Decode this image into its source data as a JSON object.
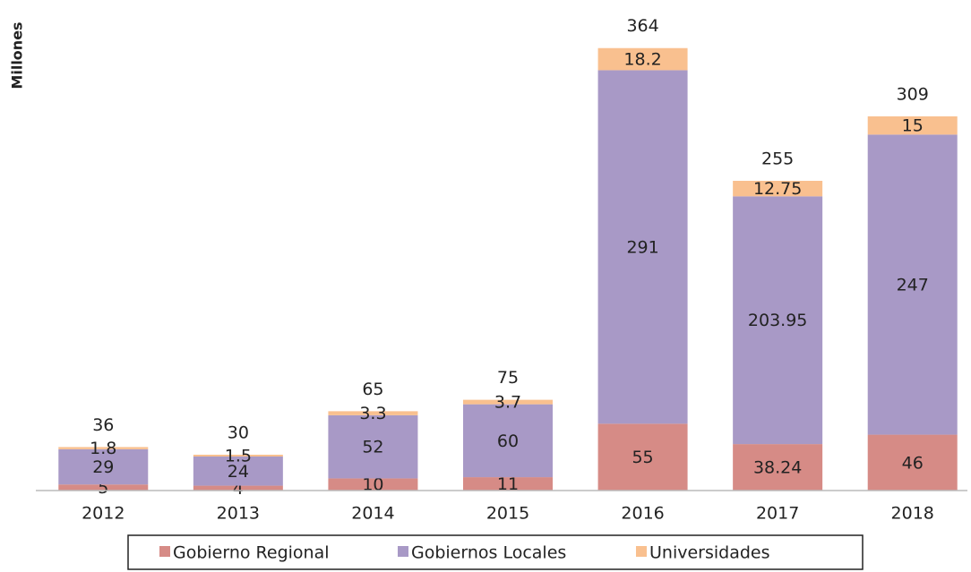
{
  "chart_data": {
    "type": "stacked_bar",
    "y_label": "Millones",
    "categories": [
      "2012",
      "2013",
      "2014",
      "2015",
      "2016",
      "2017",
      "2018"
    ],
    "series": [
      {
        "name": "Gobierno Regional",
        "color": "#d68b86",
        "values": [
          5,
          4,
          10,
          11,
          55,
          38.24,
          46
        ]
      },
      {
        "name": "Gobiernos Locales",
        "color": "#a899c6",
        "values": [
          29,
          24,
          52,
          60,
          291,
          203.95,
          247
        ]
      },
      {
        "name": "Universidades",
        "color": "#f9c08f",
        "values": [
          1.8,
          1.5,
          3.3,
          3.7,
          18.2,
          12.75,
          15
        ]
      }
    ],
    "totals": [
      36,
      30,
      65,
      75,
      364,
      255,
      309
    ],
    "ylim": [
      0,
      364
    ],
    "legend": "bottom"
  }
}
